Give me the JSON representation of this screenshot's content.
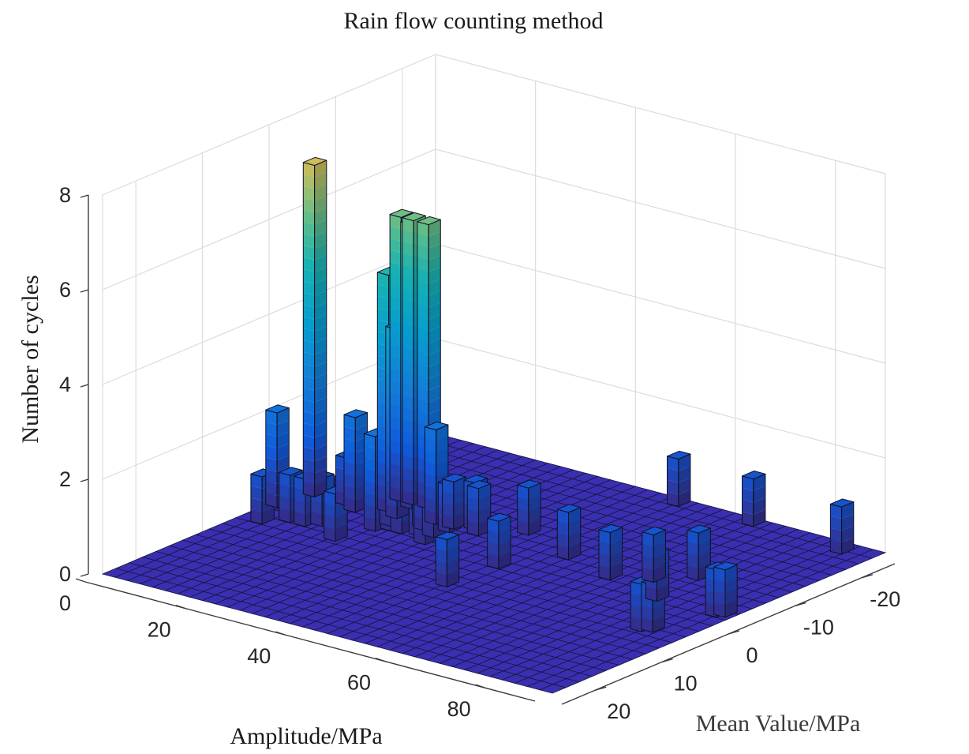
{
  "chart_data": {
    "type": "bar3d",
    "title": "Rain flow counting method",
    "xlabel": "Amplitude/MPa",
    "ylabel": "Mean Value/MPa",
    "zlabel": "Number of cycles",
    "xlim": [
      0,
      90
    ],
    "ylim": [
      -25,
      25
    ],
    "zlim": [
      0,
      8
    ],
    "xticks": [
      "0",
      "20",
      "40",
      "60",
      "80"
    ],
    "yticks": [
      "-20",
      "-10",
      "0",
      "10",
      "20"
    ],
    "zticks": [
      "0",
      "2",
      "4",
      "6",
      "8"
    ],
    "grid": true,
    "colormap": "parula",
    "bars": [
      {
        "amplitude": 1,
        "mean": -0.5,
        "count": 2
      },
      {
        "amplitude": 2.5,
        "mean": -5,
        "count": 7
      },
      {
        "amplitude": 4,
        "mean": 4,
        "count": 1
      },
      {
        "amplitude": 7,
        "mean": 2,
        "count": 1
      },
      {
        "amplitude": 10,
        "mean": 2,
        "count": 1
      },
      {
        "amplitude": 9,
        "mean": -5,
        "count": 1
      },
      {
        "amplitude": 12,
        "mean": -4,
        "count": 2
      },
      {
        "amplitude": 12,
        "mean": 1,
        "count": 1
      },
      {
        "amplitude": 14.5,
        "mean": -9,
        "count": 6
      },
      {
        "amplitude": 17,
        "mean": -9,
        "count": 6
      },
      {
        "amplitude": 18,
        "mean": -8,
        "count": 6
      },
      {
        "amplitude": 20,
        "mean": -9,
        "count": 6
      },
      {
        "amplitude": 16,
        "mean": -6,
        "count": 5
      },
      {
        "amplitude": 19,
        "mean": -5,
        "count": 4
      },
      {
        "amplitude": 20.5,
        "mean": -3,
        "count": 3
      },
      {
        "amplitude": 18,
        "mean": 3.5,
        "count": 1
      },
      {
        "amplitude": 20,
        "mean": -1,
        "count": 2
      },
      {
        "amplitude": 22,
        "mean": -2,
        "count": 1
      },
      {
        "amplitude": 24,
        "mean": -2,
        "count": 1
      },
      {
        "amplitude": 25,
        "mean": -4.5,
        "count": 2
      },
      {
        "amplitude": 25.5,
        "mean": -6,
        "count": 2
      },
      {
        "amplitude": 26,
        "mean": -4,
        "count": 1
      },
      {
        "amplitude": 27,
        "mean": -2.5,
        "count": 1
      },
      {
        "amplitude": 29,
        "mean": -6,
        "count": 1
      },
      {
        "amplitude": 29.5,
        "mean": -5,
        "count": 1
      },
      {
        "amplitude": 29,
        "mean": -3,
        "count": 1
      },
      {
        "amplitude": 30,
        "mean": -1,
        "count": 1
      },
      {
        "amplitude": 32,
        "mean": -7,
        "count": 1
      },
      {
        "amplitude": 34,
        "mean": -6,
        "count": 1
      },
      {
        "amplitude": 45,
        "mean": 7,
        "count": 1
      },
      {
        "amplitude": 46,
        "mean": 0,
        "count": 1
      },
      {
        "amplitude": 40,
        "mean": -9,
        "count": 1
      },
      {
        "amplitude": 52,
        "mean": -6,
        "count": 1
      },
      {
        "amplitude": 63,
        "mean": -4,
        "count": 1
      },
      {
        "amplitude": 69,
        "mean": -6,
        "count": 1
      },
      {
        "amplitude": 74,
        "mean": -9,
        "count": 1
      },
      {
        "amplitude": 75,
        "mean": -2,
        "count": 1
      },
      {
        "amplitude": 82,
        "mean": 5.5,
        "count": 1
      },
      {
        "amplitude": 83.5,
        "mean": 5,
        "count": 1
      },
      {
        "amplitude": 87,
        "mean": -2,
        "count": 1
      },
      {
        "amplitude": 88,
        "mean": -2.5,
        "count": 1
      },
      {
        "amplitude": 50,
        "mean": -24,
        "count": 1
      },
      {
        "amplitude": 65,
        "mean": -24,
        "count": 1
      },
      {
        "amplitude": 84,
        "mean": -23,
        "count": 1
      }
    ]
  }
}
